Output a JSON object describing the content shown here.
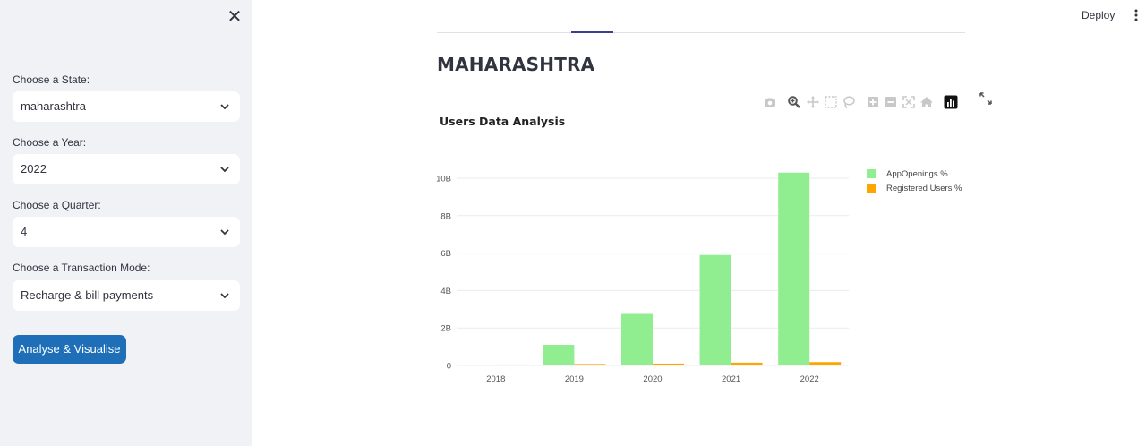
{
  "sidebar": {
    "close_icon": "close-icon",
    "fields": [
      {
        "label": "Choose a State:",
        "value": "maharashtra"
      },
      {
        "label": "Choose a Year:",
        "value": "2022"
      },
      {
        "label": "Choose a Quarter:",
        "value": "4"
      },
      {
        "label": "Choose a Transaction Mode:",
        "value": "Recharge & bill payments"
      }
    ],
    "button_label": "Analyse & Visualise"
  },
  "header": {
    "deploy_label": "Deploy",
    "menu_icon": "more-vertical-icon"
  },
  "main": {
    "title": "MAHARASHTRA"
  },
  "modebar_icons": [
    "camera-icon",
    "zoom-icon",
    "pan-icon",
    "box-select-icon",
    "lasso-icon",
    "zoom-in-icon",
    "zoom-out-icon",
    "autoscale-icon",
    "reset-axes-icon",
    "plotly-logo-icon"
  ],
  "colors": {
    "accent": "#1f6fb8",
    "app_openings": "#90ee90",
    "registered_users": "#ffa500"
  },
  "chart_data": {
    "type": "bar",
    "title": "Users Data Analysis",
    "categories": [
      "2018",
      "2019",
      "2020",
      "2021",
      "2022"
    ],
    "series": [
      {
        "name": "AppOpenings %",
        "values": [
          0,
          1.1,
          2.75,
          5.9,
          10.3
        ]
      },
      {
        "name": "Registered Users %",
        "values": [
          0.05,
          0.08,
          0.1,
          0.15,
          0.18
        ]
      }
    ],
    "y_ticks": [
      "0",
      "2B",
      "4B",
      "6B",
      "8B",
      "10B"
    ],
    "ylim": [
      0,
      11
    ],
    "y_unit": "B",
    "grid": true,
    "legend_position": "top-right"
  }
}
